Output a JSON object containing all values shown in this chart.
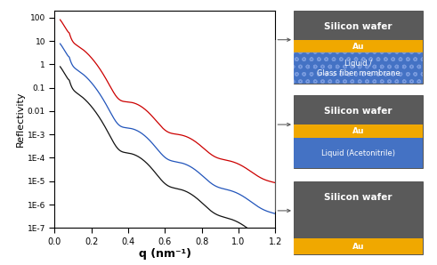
{
  "xlim": [
    0.0,
    1.2
  ],
  "xlabel": "q (nm⁻¹)",
  "ylabel": "Reflectivity",
  "ytick_labels": [
    "1E-7",
    "1E-6",
    "1E-5",
    "1E-4",
    "1E-3",
    "0.01",
    "0.1",
    "1",
    "10",
    "100"
  ],
  "xticks": [
    0.0,
    0.2,
    0.4,
    0.6,
    0.8,
    1.0,
    1.2
  ],
  "colors": {
    "red": "#cc0000",
    "blue": "#2255bb",
    "black": "#111111"
  },
  "box1": {
    "title": "Silicon wafer",
    "layer1_color": "#f0a800",
    "layer1_text": "Au",
    "layer2_color": "#4472c4",
    "layer2_pattern": true,
    "layer2_text": "Liquid /\nGlass fiber membrane",
    "bg_color": "#5a5a5a"
  },
  "box2": {
    "title": "Silicon wafer",
    "layer1_color": "#f0a800",
    "layer1_text": "Au",
    "layer2_color": "#4472c4",
    "layer2_text": "Liquid (Acetonitrile)",
    "bg_color": "#5a5a5a"
  },
  "box3": {
    "title": "Silicon wafer",
    "layer1_color": "#f0a800",
    "layer1_text": "Au",
    "bg_color": "#5a5a5a"
  },
  "arrow_color": "#555555",
  "fig_bg": "#ffffff"
}
